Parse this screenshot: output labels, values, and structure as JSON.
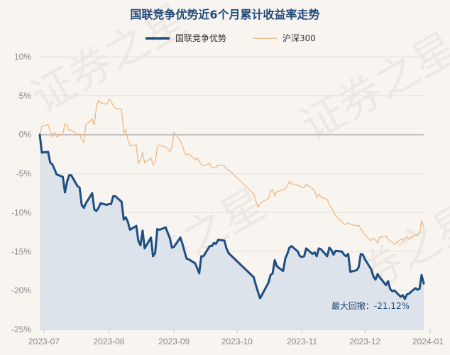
{
  "chart_data": {
    "type": "line",
    "title": "国联竞争优势近6个月累计收益率走势",
    "watermark": "证券之星",
    "ylim": [
      -25,
      10
    ],
    "y_ticks": [
      10,
      5,
      0,
      -5,
      -10,
      -15,
      -20,
      -25
    ],
    "y_tick_labels": [
      "10%",
      "5%",
      "0%",
      "-5%",
      "-10%",
      "-15%",
      "-20%",
      "-25%"
    ],
    "x_start": "2023-06-29",
    "x_end": "2023-12-29",
    "x_ticks": [
      "2023-07-01",
      "2023-08-01",
      "2023-09-01",
      "2023-10-01",
      "2023-11-01",
      "2023-12-01",
      "2024-01-01"
    ],
    "x_tick_labels": [
      "2023-07",
      "2023-08",
      "2023-09",
      "2023-10",
      "2023-11",
      "2023-12",
      "2024-01"
    ],
    "grid": "horizontal",
    "legend_position": "top-center",
    "series": [
      {
        "name": "国联竞争优势",
        "color": "#1f4e82",
        "area": true,
        "area_color": "#dde3ea",
        "points": [
          [
            "2023-06-29",
            0
          ],
          [
            "2023-06-30",
            -2.3
          ],
          [
            "2023-07-03",
            -2.2
          ],
          [
            "2023-07-04",
            -3.6
          ],
          [
            "2023-07-05",
            -3.8
          ],
          [
            "2023-07-06",
            -4.4
          ],
          [
            "2023-07-07",
            -5.1
          ],
          [
            "2023-07-10",
            -5.4
          ],
          [
            "2023-07-11",
            -7.4
          ],
          [
            "2023-07-12",
            -6.1
          ],
          [
            "2023-07-13",
            -5.2
          ],
          [
            "2023-07-14",
            -5.2
          ],
          [
            "2023-07-17",
            -6.6
          ],
          [
            "2023-07-18",
            -6.8
          ],
          [
            "2023-07-19",
            -9.0
          ],
          [
            "2023-07-20",
            -9.4
          ],
          [
            "2023-07-21",
            -8.8
          ],
          [
            "2023-07-24",
            -7.5
          ],
          [
            "2023-07-25",
            -9.6
          ],
          [
            "2023-07-26",
            -9.8
          ],
          [
            "2023-07-27",
            -9.4
          ],
          [
            "2023-07-28",
            -8.8
          ],
          [
            "2023-07-31",
            -9.0
          ],
          [
            "2023-08-01",
            -8.9
          ],
          [
            "2023-08-02",
            -8.9
          ],
          [
            "2023-08-03",
            -7.9
          ],
          [
            "2023-08-04",
            -7.9
          ],
          [
            "2023-08-07",
            -8.6
          ],
          [
            "2023-08-08",
            -10.9
          ],
          [
            "2023-08-09",
            -10.6
          ],
          [
            "2023-08-10",
            -11.2
          ],
          [
            "2023-08-11",
            -12.2
          ],
          [
            "2023-08-14",
            -11.7
          ],
          [
            "2023-08-15",
            -13.6
          ],
          [
            "2023-08-16",
            -14.2
          ],
          [
            "2023-08-17",
            -12.3
          ],
          [
            "2023-08-18",
            -14.6
          ],
          [
            "2023-08-21",
            -13.2
          ],
          [
            "2023-08-22",
            -15.6
          ],
          [
            "2023-08-23",
            -15.2
          ],
          [
            "2023-08-24",
            -12.1
          ],
          [
            "2023-08-25",
            -12.2
          ],
          [
            "2023-08-28",
            -11.9
          ],
          [
            "2023-08-29",
            -12.6
          ],
          [
            "2023-08-30",
            -13.3
          ],
          [
            "2023-08-31",
            -14.5
          ],
          [
            "2023-09-01",
            -14.4
          ],
          [
            "2023-09-04",
            -13.2
          ],
          [
            "2023-09-05",
            -14.0
          ],
          [
            "2023-09-06",
            -15.0
          ],
          [
            "2023-09-07",
            -15.9
          ],
          [
            "2023-09-08",
            -16.0
          ],
          [
            "2023-09-11",
            -16.5
          ],
          [
            "2023-09-12",
            -17.1
          ],
          [
            "2023-09-13",
            -17.8
          ],
          [
            "2023-09-14",
            -15.6
          ],
          [
            "2023-09-15",
            -15.6
          ],
          [
            "2023-09-18",
            -14.3
          ],
          [
            "2023-09-19",
            -14.3
          ],
          [
            "2023-09-20",
            -13.9
          ],
          [
            "2023-09-21",
            -14.0
          ],
          [
            "2023-09-22",
            -13.5
          ],
          [
            "2023-09-25",
            -13.6
          ],
          [
            "2023-09-26",
            -14.6
          ],
          [
            "2023-09-27",
            -15.2
          ],
          [
            "2023-10-09",
            -18.3
          ],
          [
            "2023-10-10",
            -19.3
          ],
          [
            "2023-10-11",
            -20.2
          ],
          [
            "2023-10-12",
            -21.0
          ],
          [
            "2023-10-13",
            -20.5
          ],
          [
            "2023-10-16",
            -19.0
          ],
          [
            "2023-10-17",
            -18.0
          ],
          [
            "2023-10-18",
            -17.8
          ],
          [
            "2023-10-19",
            -16.1
          ],
          [
            "2023-10-20",
            -16.9
          ],
          [
            "2023-10-23",
            -17.5
          ],
          [
            "2023-10-24",
            -15.9
          ],
          [
            "2023-10-25",
            -15.3
          ],
          [
            "2023-10-26",
            -14.5
          ],
          [
            "2023-10-27",
            -14.3
          ],
          [
            "2023-10-30",
            -15.0
          ],
          [
            "2023-10-31",
            -15.6
          ],
          [
            "2023-11-01",
            -15.7
          ],
          [
            "2023-11-02",
            -15.6
          ],
          [
            "2023-11-03",
            -14.6
          ],
          [
            "2023-11-06",
            -15.3
          ],
          [
            "2023-11-07",
            -15.1
          ],
          [
            "2023-11-08",
            -15.6
          ],
          [
            "2023-11-09",
            -14.6
          ],
          [
            "2023-11-10",
            -14.7
          ],
          [
            "2023-11-13",
            -15.6
          ],
          [
            "2023-11-14",
            -14.5
          ],
          [
            "2023-11-15",
            -14.8
          ],
          [
            "2023-11-16",
            -15.4
          ],
          [
            "2023-11-17",
            -14.9
          ],
          [
            "2023-11-20",
            -15.0
          ],
          [
            "2023-11-21",
            -15.4
          ],
          [
            "2023-11-22",
            -15.6
          ],
          [
            "2023-11-23",
            -15.3
          ],
          [
            "2023-11-24",
            -17.6
          ],
          [
            "2023-11-27",
            -17.4
          ],
          [
            "2023-11-28",
            -17.0
          ],
          [
            "2023-11-29",
            -15.3
          ],
          [
            "2023-11-30",
            -15.4
          ],
          [
            "2023-12-01",
            -16.0
          ],
          [
            "2023-12-04",
            -17.3
          ],
          [
            "2023-12-05",
            -18.2
          ],
          [
            "2023-12-06",
            -18.6
          ],
          [
            "2023-12-07",
            -17.9
          ],
          [
            "2023-12-08",
            -18.3
          ],
          [
            "2023-12-11",
            -19.3
          ],
          [
            "2023-12-12",
            -18.8
          ],
          [
            "2023-12-13",
            -19.8
          ],
          [
            "2023-12-14",
            -20.1
          ],
          [
            "2023-12-15",
            -20.0
          ],
          [
            "2023-12-18",
            -20.8
          ],
          [
            "2023-12-19",
            -20.6
          ],
          [
            "2023-12-20",
            -21.1
          ],
          [
            "2023-12-21",
            -20.5
          ],
          [
            "2023-12-22",
            -20.4
          ],
          [
            "2023-12-25",
            -19.7
          ],
          [
            "2023-12-26",
            -19.9
          ],
          [
            "2023-12-27",
            -19.8
          ],
          [
            "2023-12-28",
            -18.0
          ],
          [
            "2023-12-29",
            -19.1
          ]
        ]
      },
      {
        "name": "沪深300",
        "color": "#f2b27a",
        "area": false,
        "points": [
          [
            "2023-06-29",
            0
          ],
          [
            "2023-06-30",
            1.1
          ],
          [
            "2023-07-03",
            1.3
          ],
          [
            "2023-07-04",
            0.5
          ],
          [
            "2023-07-05",
            -0.3
          ],
          [
            "2023-07-06",
            0.3
          ],
          [
            "2023-07-07",
            -0.3
          ],
          [
            "2023-07-10",
            0.1
          ],
          [
            "2023-07-11",
            1.4
          ],
          [
            "2023-07-12",
            1.3
          ],
          [
            "2023-07-13",
            0.5
          ],
          [
            "2023-07-14",
            0.6
          ],
          [
            "2023-07-17",
            0.0
          ],
          [
            "2023-07-18",
            0.1
          ],
          [
            "2023-07-19",
            -0.6
          ],
          [
            "2023-07-20",
            -1.0
          ],
          [
            "2023-07-21",
            1.3
          ],
          [
            "2023-07-24",
            2.0
          ],
          [
            "2023-07-25",
            1.3
          ],
          [
            "2023-07-26",
            3.5
          ],
          [
            "2023-07-27",
            4.4
          ],
          [
            "2023-07-28",
            4.1
          ],
          [
            "2023-07-31",
            3.9
          ],
          [
            "2023-08-01",
            4.6
          ],
          [
            "2023-08-02",
            4.3
          ],
          [
            "2023-08-03",
            3.7
          ],
          [
            "2023-08-04",
            3.4
          ],
          [
            "2023-08-07",
            3.3
          ],
          [
            "2023-08-08",
            0.2
          ],
          [
            "2023-08-09",
            0.7
          ],
          [
            "2023-08-10",
            -0.6
          ],
          [
            "2023-08-11",
            -1.4
          ],
          [
            "2023-08-14",
            -1.3
          ],
          [
            "2023-08-15",
            -3.7
          ],
          [
            "2023-08-16",
            -3.2
          ],
          [
            "2023-08-17",
            -2.3
          ],
          [
            "2023-08-18",
            -3.6
          ],
          [
            "2023-08-21",
            -3.0
          ],
          [
            "2023-08-22",
            -3.9
          ],
          [
            "2023-08-23",
            -3.6
          ],
          [
            "2023-08-24",
            -1.6
          ],
          [
            "2023-08-25",
            -1.3
          ],
          [
            "2023-08-28",
            -1.6
          ],
          [
            "2023-08-29",
            -1.8
          ],
          [
            "2023-08-30",
            -2.2
          ],
          [
            "2023-08-31",
            -1.6
          ],
          [
            "2023-09-01",
            0.3
          ],
          [
            "2023-09-04",
            -0.8
          ],
          [
            "2023-09-05",
            -1.4
          ],
          [
            "2023-09-06",
            -2.3
          ],
          [
            "2023-09-07",
            -2.6
          ],
          [
            "2023-09-08",
            -2.5
          ],
          [
            "2023-09-11",
            -3.2
          ],
          [
            "2023-09-12",
            -3.0
          ],
          [
            "2023-09-13",
            -3.4
          ],
          [
            "2023-09-14",
            -3.9
          ],
          [
            "2023-09-15",
            -4.0
          ],
          [
            "2023-09-18",
            -3.7
          ],
          [
            "2023-09-19",
            -4.2
          ],
          [
            "2023-09-20",
            -4.2
          ],
          [
            "2023-09-21",
            -4.2
          ],
          [
            "2023-09-22",
            -3.9
          ],
          [
            "2023-09-25",
            -4.0
          ],
          [
            "2023-09-26",
            -4.5
          ],
          [
            "2023-09-27",
            -4.5
          ],
          [
            "2023-10-09",
            -7.6
          ],
          [
            "2023-10-10",
            -8.5
          ],
          [
            "2023-10-11",
            -9.3
          ],
          [
            "2023-10-12",
            -8.9
          ],
          [
            "2023-10-13",
            -8.6
          ],
          [
            "2023-10-16",
            -8.2
          ],
          [
            "2023-10-17",
            -7.3
          ],
          [
            "2023-10-18",
            -7.0
          ],
          [
            "2023-10-19",
            -7.9
          ],
          [
            "2023-10-20",
            -7.3
          ],
          [
            "2023-10-23",
            -7.1
          ],
          [
            "2023-10-24",
            -6.9
          ],
          [
            "2023-10-25",
            -6.6
          ],
          [
            "2023-10-26",
            -6.0
          ],
          [
            "2023-10-27",
            -6.3
          ],
          [
            "2023-10-30",
            -6.5
          ],
          [
            "2023-10-31",
            -6.6
          ],
          [
            "2023-11-01",
            -6.8
          ],
          [
            "2023-11-02",
            -6.8
          ],
          [
            "2023-11-03",
            -6.4
          ],
          [
            "2023-11-06",
            -6.9
          ],
          [
            "2023-11-07",
            -7.2
          ],
          [
            "2023-11-08",
            -8.1
          ],
          [
            "2023-11-09",
            -7.6
          ],
          [
            "2023-11-10",
            -8.0
          ],
          [
            "2023-11-13",
            -8.3
          ],
          [
            "2023-11-14",
            -9.0
          ],
          [
            "2023-11-15",
            -9.4
          ],
          [
            "2023-11-16",
            -9.9
          ],
          [
            "2023-11-17",
            -10.4
          ],
          [
            "2023-11-20",
            -11.2
          ],
          [
            "2023-11-21",
            -11.5
          ],
          [
            "2023-11-22",
            -11.5
          ],
          [
            "2023-11-23",
            -11.3
          ],
          [
            "2023-11-24",
            -11.5
          ],
          [
            "2023-11-27",
            -11.7
          ],
          [
            "2023-11-28",
            -11.6
          ],
          [
            "2023-11-29",
            -12.1
          ],
          [
            "2023-11-30",
            -12.4
          ],
          [
            "2023-12-01",
            -12.9
          ],
          [
            "2023-12-04",
            -13.6
          ],
          [
            "2023-12-05",
            -13.3
          ],
          [
            "2023-12-06",
            -13.5
          ],
          [
            "2023-12-07",
            -13.9
          ],
          [
            "2023-12-08",
            -13.2
          ],
          [
            "2023-12-11",
            -13.0
          ],
          [
            "2023-12-12",
            -13.4
          ],
          [
            "2023-12-13",
            -13.7
          ],
          [
            "2023-12-14",
            -13.8
          ],
          [
            "2023-12-15",
            -14.1
          ],
          [
            "2023-12-18",
            -13.4
          ],
          [
            "2023-12-19",
            -13.6
          ],
          [
            "2023-12-20",
            -13.3
          ],
          [
            "2023-12-21",
            -13.1
          ],
          [
            "2023-12-22",
            -13.4
          ],
          [
            "2023-12-25",
            -12.8
          ],
          [
            "2023-12-26",
            -13.0
          ],
          [
            "2023-12-27",
            -12.6
          ],
          [
            "2023-12-28",
            -11.0
          ],
          [
            "2023-12-29",
            -11.9
          ]
        ]
      }
    ],
    "annotation": {
      "text": "最大回撤：-21.12%",
      "value": -21.12,
      "series": "国联竞争优势"
    }
  }
}
